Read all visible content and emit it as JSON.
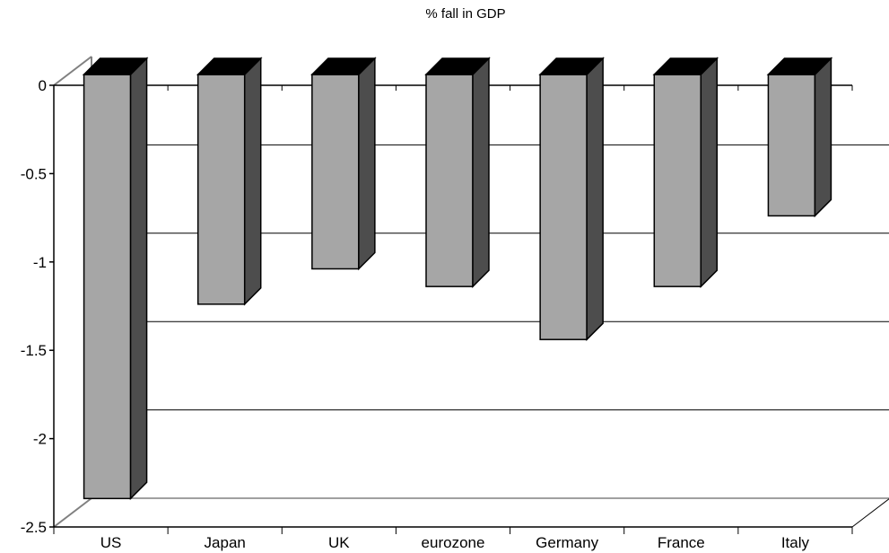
{
  "chart_data": {
    "type": "bar",
    "title": "% fall in GDP",
    "xlabel": "",
    "ylabel": "",
    "categories": [
      "US",
      "Japan",
      "UK",
      "eurozone",
      "Germany",
      "France",
      "Italy"
    ],
    "values": [
      -2.4,
      -1.3,
      -1.1,
      -1.2,
      -1.5,
      -1.2,
      -0.8
    ],
    "ylim": [
      -2.5,
      0
    ],
    "yticks": [
      0,
      -0.5,
      -1,
      -1.5,
      -2,
      -2.5
    ],
    "ytick_labels": [
      "0",
      "-0.5",
      "-1",
      "-1.5",
      "-2",
      "-2.5"
    ],
    "grid": true,
    "legend": "none",
    "colors": {
      "bar_front": "#a6a6a6",
      "bar_side": "#4d4d4d",
      "bar_top": "#000000",
      "grid": "#000000",
      "wall": "#808080"
    }
  }
}
